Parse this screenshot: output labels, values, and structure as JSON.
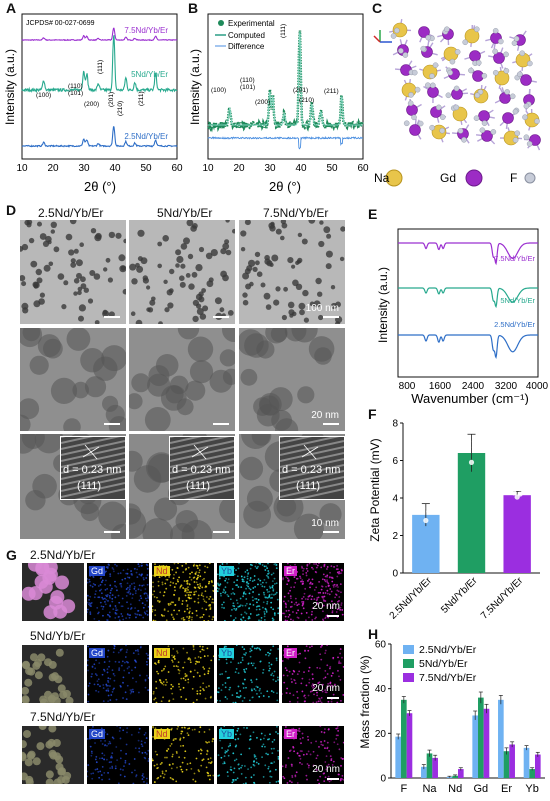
{
  "panels": {
    "A": {
      "label": "A",
      "jcpds": "JCPDS# 00-027-0699",
      "xlabel": "2θ (°)",
      "ylabel": "Intensity (a.u.)",
      "xticks": [
        "10",
        "20",
        "30",
        "40",
        "50",
        "60"
      ],
      "series": [
        {
          "name": "7.5Nd/Yb/Er",
          "color": "#9b30d0"
        },
        {
          "name": "5Nd/Yb/Er",
          "color": "#27a98e"
        },
        {
          "name": "2.5Nd/Yb/Er",
          "color": "#2f6fc7"
        }
      ],
      "peaks": [
        "(100)",
        "(110)",
        "(101)",
        "(200)",
        "(111)",
        "(201)",
        "(210)",
        "(211)"
      ]
    },
    "B": {
      "label": "B",
      "legend": [
        "Experimental",
        "Computed",
        "Difference"
      ],
      "xlabel": "2θ (°)",
      "ylabel": "Intensity (a.u.)",
      "xticks": [
        "10",
        "20",
        "30",
        "40",
        "50",
        "60"
      ],
      "peaks": [
        "(100)",
        "(110)",
        "(101)",
        "(200)",
        "(111)",
        "(201)",
        "(210)",
        "(211)"
      ]
    },
    "C": {
      "label": "C",
      "atoms": [
        {
          "name": "Na",
          "color": "#e8c54a"
        },
        {
          "name": "Gd",
          "color": "#9c2cc4"
        },
        {
          "name": "F",
          "color": "#c7ccd8"
        }
      ]
    },
    "D": {
      "label": "D",
      "columns": [
        "2.5Nd/Yb/Er",
        "5Nd/Yb/Er",
        "7.5Nd/Yb/Er"
      ],
      "scale_row1": "100 nm",
      "scale_row2": "20 nm",
      "scale_row3": "10 nm",
      "d_spacing": "d = 0.23 nm",
      "plane": "(111)"
    },
    "E": {
      "label": "E",
      "xlabel": "Wavenumber (cm⁻¹)",
      "ylabel": "Intensity (a.u.)",
      "xticks": [
        "800",
        "1600",
        "2400",
        "3200",
        "4000"
      ],
      "series": [
        {
          "name": "7.5Nd/Yb/Er",
          "color": "#9b30d0"
        },
        {
          "name": "5Nd/Yb/Er",
          "color": "#27a98e"
        },
        {
          "name": "2.5Nd/Yb/Er",
          "color": "#2f6fc7"
        }
      ]
    },
    "F": {
      "label": "F",
      "ylabel": "Zeta Potential (mV)",
      "yticks": [
        "0",
        "2",
        "4",
        "6",
        "8"
      ]
    },
    "G": {
      "label": "G",
      "rows": [
        "2.5Nd/Yb/Er",
        "5Nd/Yb/Er",
        "7.5Nd/Yb/Er"
      ],
      "elements": [
        {
          "name": "Gd",
          "bg": "#2346c8",
          "fg": "#ffffff"
        },
        {
          "name": "Nd",
          "bg": "#e8d21a",
          "fg": "#c0392b"
        },
        {
          "name": "Yb",
          "bg": "#22d0dc",
          "fg": "#1f4fa0"
        },
        {
          "name": "Er",
          "bg": "#d020c8",
          "fg": "#ffffff"
        }
      ],
      "scale": "20 nm"
    },
    "H": {
      "label": "H",
      "ylabel": "Mass fraction (%)",
      "yticks": [
        "0",
        "20",
        "40",
        "60"
      ]
    }
  },
  "chart_data": [
    {
      "type": "bar",
      "panel": "F",
      "categories": [
        "2.5Nd/Yb/Er",
        "5Nd/Yb/Er",
        "7.5Nd/Yb/Er"
      ],
      "values": [
        3.1,
        6.4,
        4.15
      ],
      "errors": [
        0.6,
        1.0,
        0.2
      ],
      "colors": [
        "#6fb2f2",
        "#1f9e63",
        "#9b2ee0"
      ],
      "ylabel": "Zeta Potential (mV)",
      "ylim": [
        0,
        8
      ]
    },
    {
      "type": "bar",
      "panel": "H",
      "categories": [
        "F",
        "Na",
        "Nd",
        "Gd",
        "Er",
        "Yb"
      ],
      "series": [
        {
          "name": "2.5Nd/Yb/Er",
          "color": "#6fb2f2",
          "values": [
            18.5,
            5,
            0.5,
            28,
            35,
            13.5
          ]
        },
        {
          "name": "5Nd/Yb/Er",
          "color": "#1f9e63",
          "values": [
            35,
            11,
            1,
            36,
            12,
            4
          ]
        },
        {
          "name": "7.5Nd/Yb/Er",
          "color": "#9b2ee0",
          "values": [
            29,
            9,
            4,
            31,
            15,
            10.5
          ]
        }
      ],
      "errors": [
        [
          1.2,
          1,
          0.3,
          2,
          2,
          1
        ],
        [
          1.5,
          1.5,
          0.4,
          2.5,
          1.5,
          0.6
        ],
        [
          1.2,
          1.2,
          0.6,
          2,
          1.2,
          1
        ]
      ],
      "ylabel": "Mass fraction (%)",
      "ylim": [
        0,
        60
      ]
    }
  ]
}
